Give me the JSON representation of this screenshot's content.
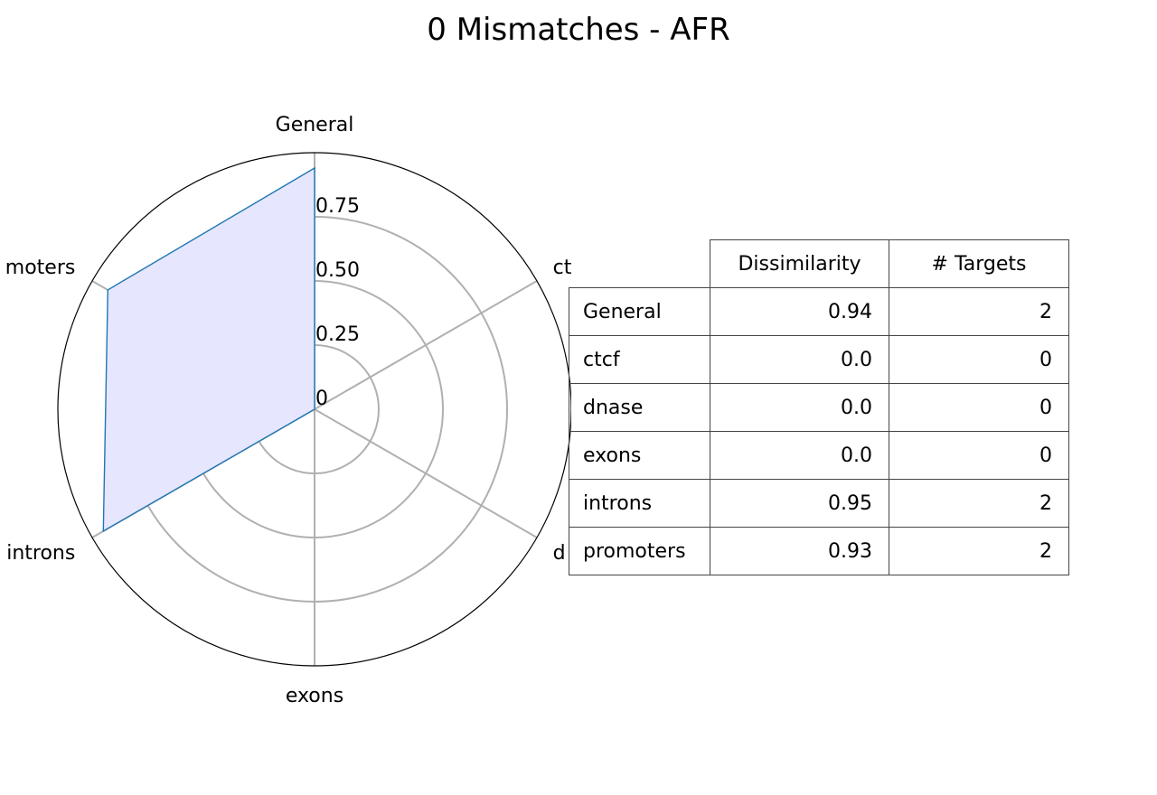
{
  "chart_data": {
    "type": "radar",
    "title": "0 Mismatches - AFR",
    "categories": [
      "General",
      "ctcf",
      "dnase",
      "exons",
      "introns",
      "promoters"
    ],
    "category_labels_visible": [
      "General",
      "ctcf",
      "d",
      "exons",
      "introns",
      "moters"
    ],
    "values": [
      0.94,
      0.0,
      0.0,
      0.0,
      0.95,
      0.93
    ],
    "radial_ticks": [
      0,
      0.25,
      0.5,
      0.75
    ],
    "radial_tick_labels": [
      "0",
      "0.25",
      "0.50",
      "0.75"
    ],
    "rlim": [
      0,
      1.0
    ],
    "grid": true,
    "colors": {
      "line": "#1f77b4",
      "fill": "#e6e6ff",
      "grid": "#b0b0b0"
    }
  },
  "table": {
    "columns": [
      "Dissimilarity",
      "# Targets"
    ],
    "rows": [
      {
        "label": "General",
        "dissimilarity": "0.94",
        "targets": "2"
      },
      {
        "label": "ctcf",
        "dissimilarity": "0.0",
        "targets": "0"
      },
      {
        "label": "dnase",
        "dissimilarity": "0.0",
        "targets": "0"
      },
      {
        "label": "exons",
        "dissimilarity": "0.0",
        "targets": "0"
      },
      {
        "label": "introns",
        "dissimilarity": "0.95",
        "targets": "2"
      },
      {
        "label": "promoters",
        "dissimilarity": "0.93",
        "targets": "2"
      }
    ]
  }
}
